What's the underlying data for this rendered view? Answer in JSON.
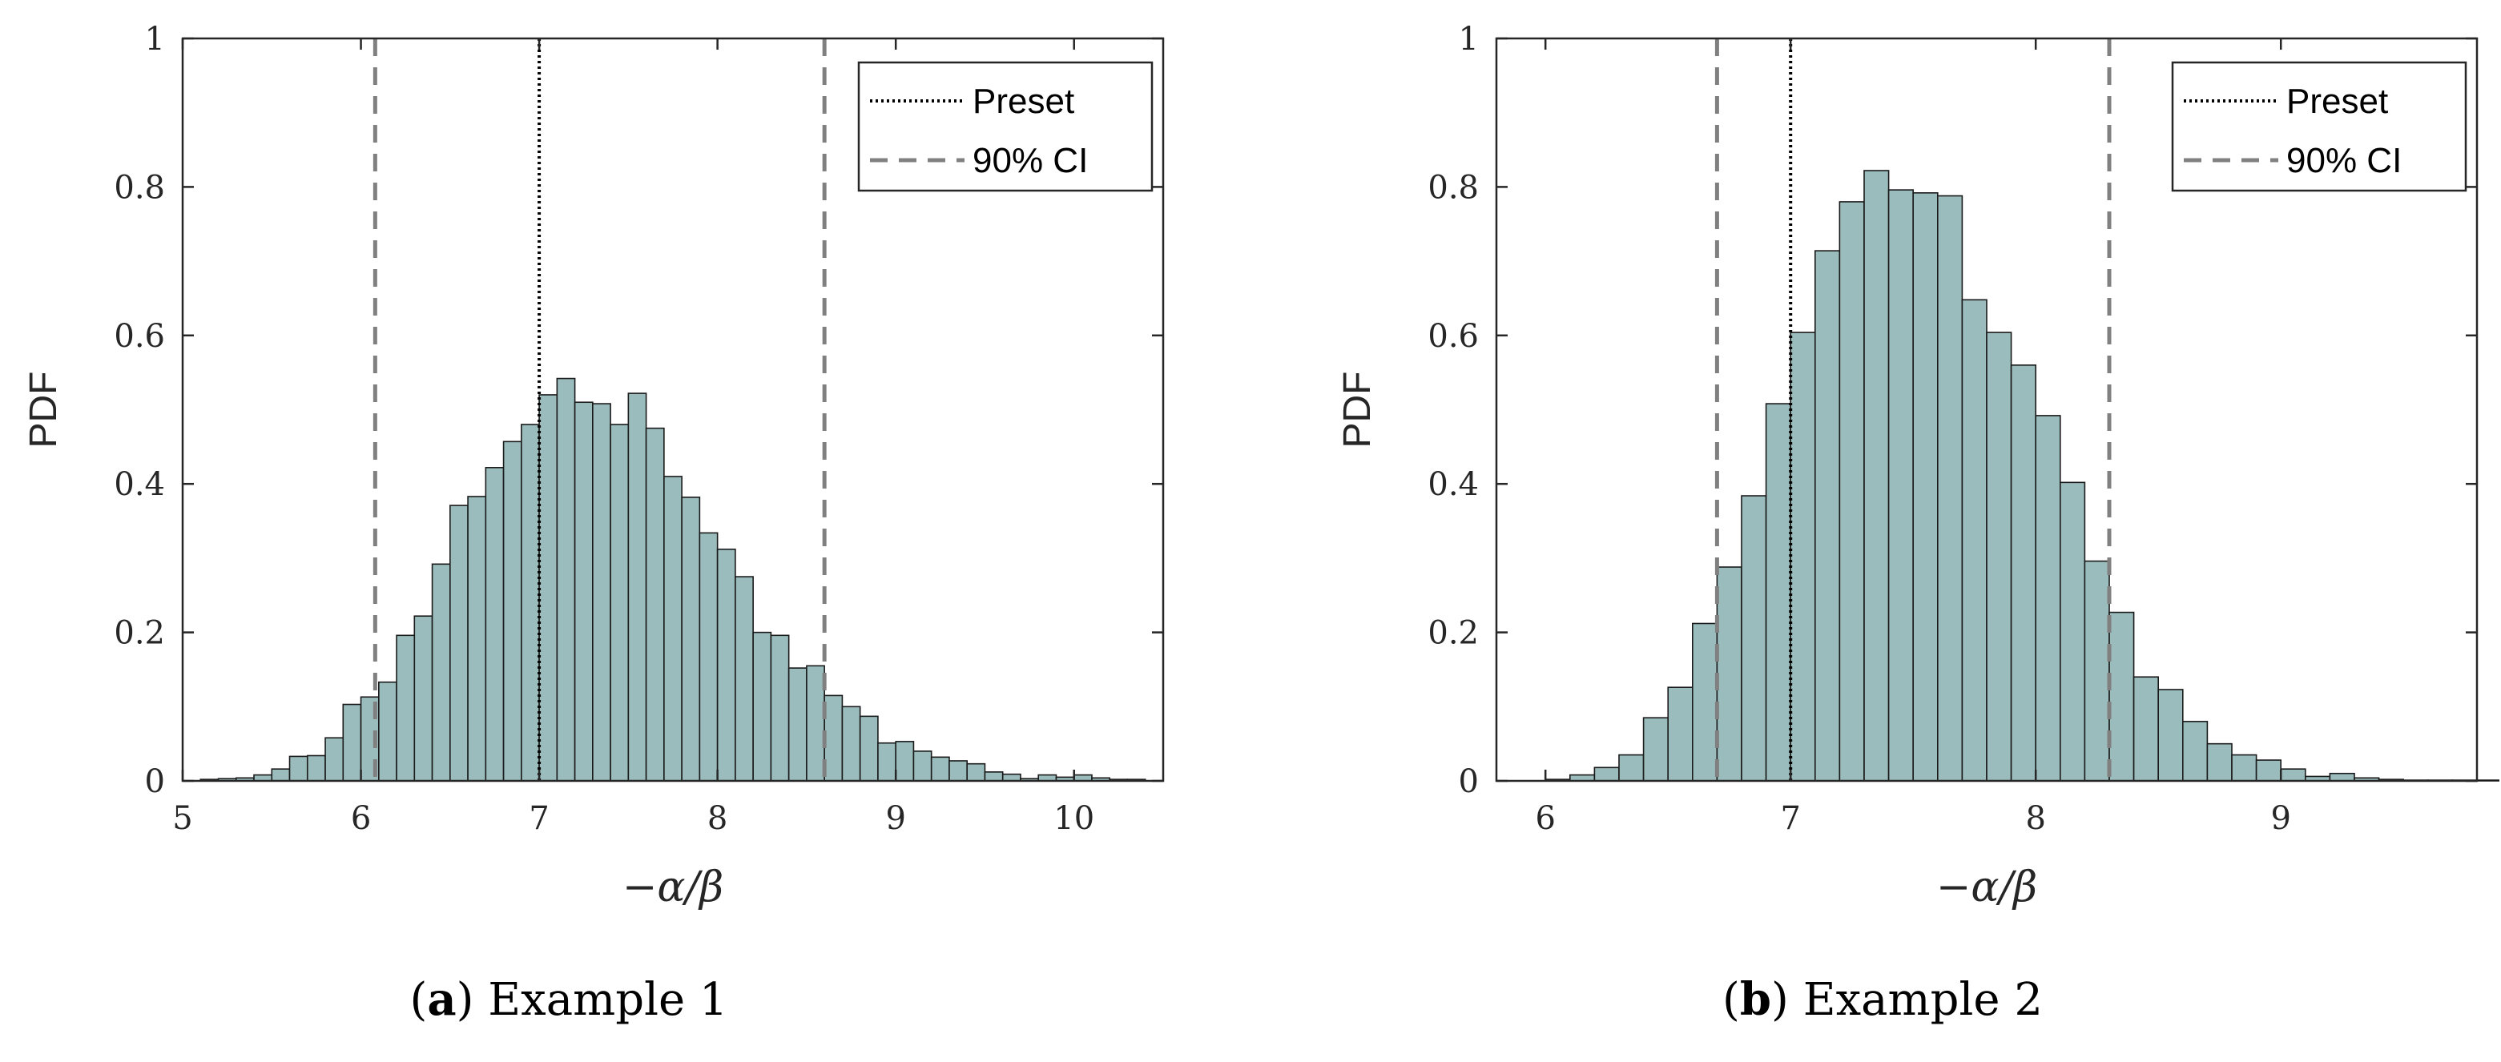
{
  "colors": {
    "bar_fill": "#9bbcbc",
    "bar_edge": "#1a1a1a",
    "preset_line": "#000000",
    "ci_line": "#808080",
    "axis": "#262626"
  },
  "chart_data": [
    {
      "type": "bar",
      "xlabel": "−α/β",
      "ylabel": "PDF",
      "xlim": [
        5,
        10.5
      ],
      "ylim": [
        0,
        1
      ],
      "xticks": [
        "5",
        "6",
        "7",
        "8",
        "9",
        "10"
      ],
      "yticks": [
        "0",
        "0.2",
        "0.4",
        "0.6",
        "0.8",
        "1"
      ],
      "bin_start": 5.1,
      "bin_width": 0.1,
      "values": [
        0.002,
        0.003,
        0.004,
        0.008,
        0.016,
        0.033,
        0.034,
        0.058,
        0.103,
        0.113,
        0.133,
        0.196,
        0.222,
        0.292,
        0.371,
        0.383,
        0.422,
        0.457,
        0.48,
        0.52,
        0.542,
        0.51,
        0.508,
        0.48,
        0.522,
        0.475,
        0.41,
        0.382,
        0.334,
        0.312,
        0.275,
        0.2,
        0.196,
        0.152,
        0.155,
        0.115,
        0.1,
        0.087,
        0.051,
        0.053,
        0.04,
        0.032,
        0.027,
        0.023,
        0.012,
        0.009,
        0.003,
        0.008,
        0.005,
        0.008,
        0.004,
        0.002,
        0.002
      ],
      "preset": 7.0,
      "ci": [
        6.08,
        8.6
      ],
      "legend": [
        {
          "label": "Preset",
          "style": "dotted"
        },
        {
          "label": "90% CI",
          "style": "dashed"
        }
      ],
      "caption_letter": "a",
      "caption_text": " Example 1",
      "caption_open": "(",
      "caption_close": ")"
    },
    {
      "type": "bar",
      "xlabel": "−α/β",
      "ylabel": "PDF",
      "xlim": [
        5.8,
        9.8
      ],
      "ylim": [
        0,
        1
      ],
      "xticks": [
        "6",
        "7",
        "8",
        "9"
      ],
      "yticks": [
        "0",
        "0.2",
        "0.4",
        "0.6",
        "0.8",
        "1"
      ],
      "bin_start": 6.0,
      "bin_width": 0.1,
      "values": [
        0.002,
        0.008,
        0.018,
        0.035,
        0.085,
        0.126,
        0.212,
        0.288,
        0.384,
        0.508,
        0.604,
        0.714,
        0.78,
        0.822,
        0.796,
        0.792,
        0.788,
        0.648,
        0.604,
        0.56,
        0.492,
        0.402,
        0.296,
        0.227,
        0.14,
        0.123,
        0.08,
        0.05,
        0.035,
        0.028,
        0.016,
        0.006,
        0.01,
        0.004,
        0.002,
        0.001,
        0.001,
        0.001,
        0.001
      ],
      "preset": 7.0,
      "ci": [
        6.7,
        8.3
      ],
      "legend": [
        {
          "label": "Preset",
          "style": "dotted"
        },
        {
          "label": "90% CI",
          "style": "dashed"
        }
      ],
      "caption_letter": "b",
      "caption_text": " Example 2",
      "caption_open": "(",
      "caption_close": ")"
    }
  ]
}
